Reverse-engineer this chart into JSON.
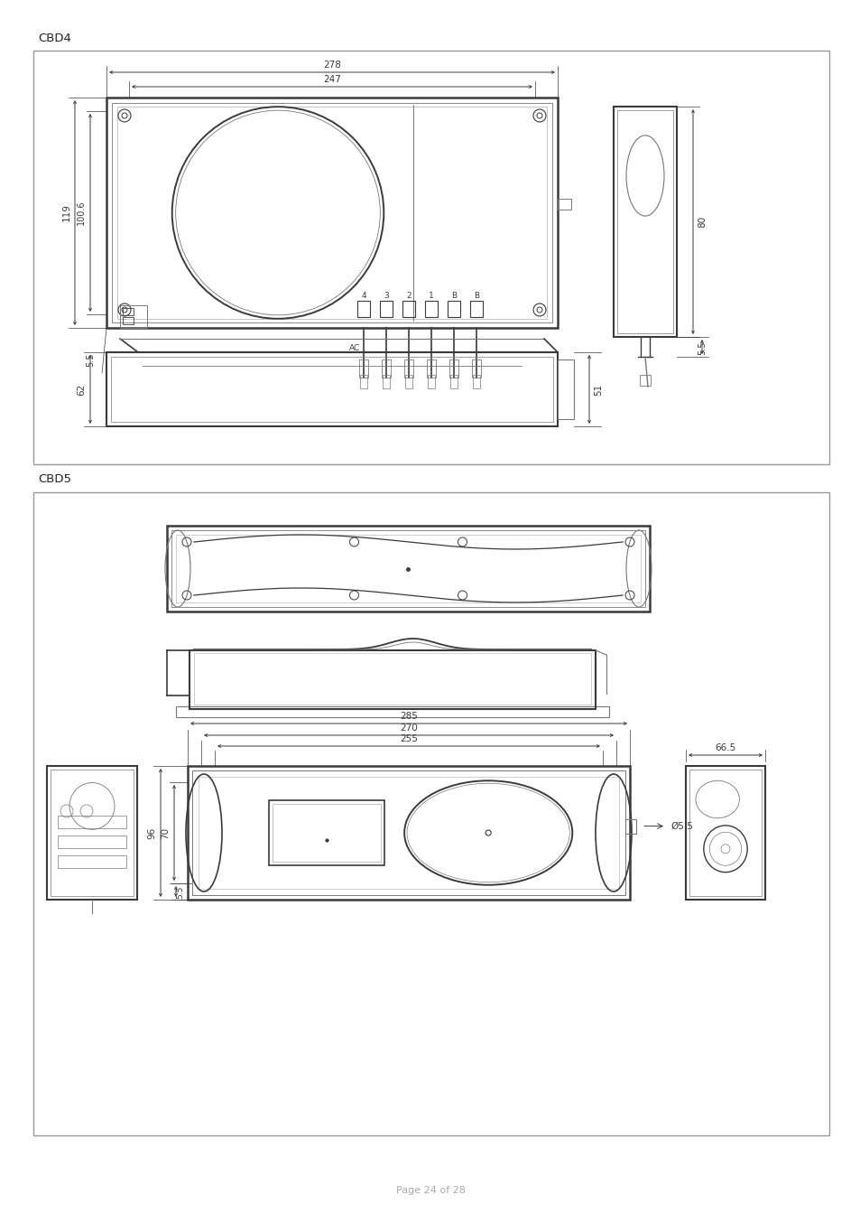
{
  "page_bg": "#ffffff",
  "label_cbd4": "CBD4",
  "label_cbd5": "CBD5",
  "page_label": "Page 24 of 28",
  "lc": "#3a3a3a",
  "dc": "#3a3a3a",
  "lgray": "#aaaaaa",
  "mgray": "#777777",
  "box_color": "#888888",
  "dim_fontsize": 7.0,
  "title_fontsize": 9.5,
  "page_fontsize": 8.0
}
